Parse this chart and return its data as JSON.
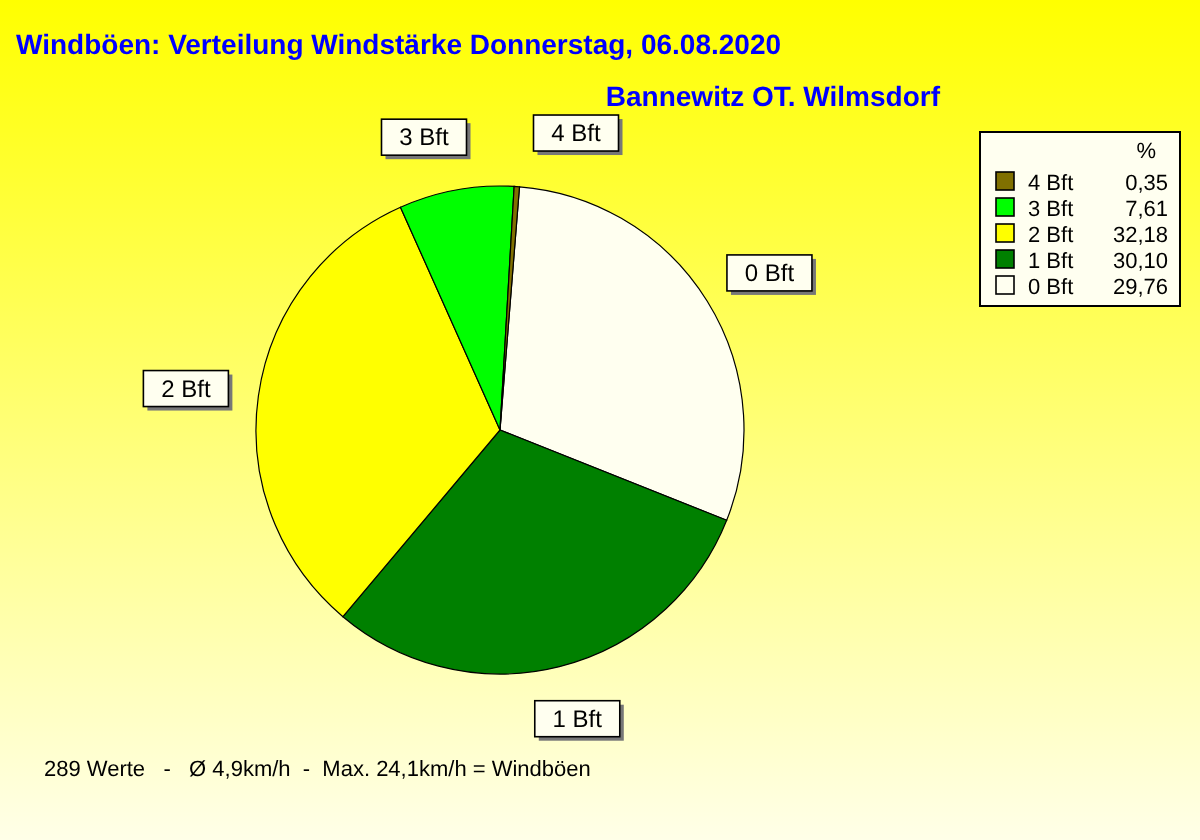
{
  "chart_data": {
    "type": "pie",
    "title": "Windböen: Verteilung Windstärke  Donnerstag, 06.08.2020",
    "subtitle": "Bannewitz OT. Wilmsdorf",
    "categories": [
      "4 Bft",
      "3 Bft",
      "2 Bft",
      "1 Bft",
      "0 Bft"
    ],
    "values": [
      0.35,
      7.61,
      32.18,
      30.1,
      29.76
    ],
    "value_labels": [
      "0,35",
      "7,61",
      "32,18",
      "30,10",
      "29,76"
    ],
    "colors": [
      "#807000",
      "#00ff00",
      "#ffff00",
      "#008000",
      "#fffff0"
    ],
    "legend": "top right",
    "legend_title": "%",
    "annotations": [
      "289 Werte   -   Ø 4,9km/h  -  Max. 24,1km/h = Windböen"
    ]
  }
}
